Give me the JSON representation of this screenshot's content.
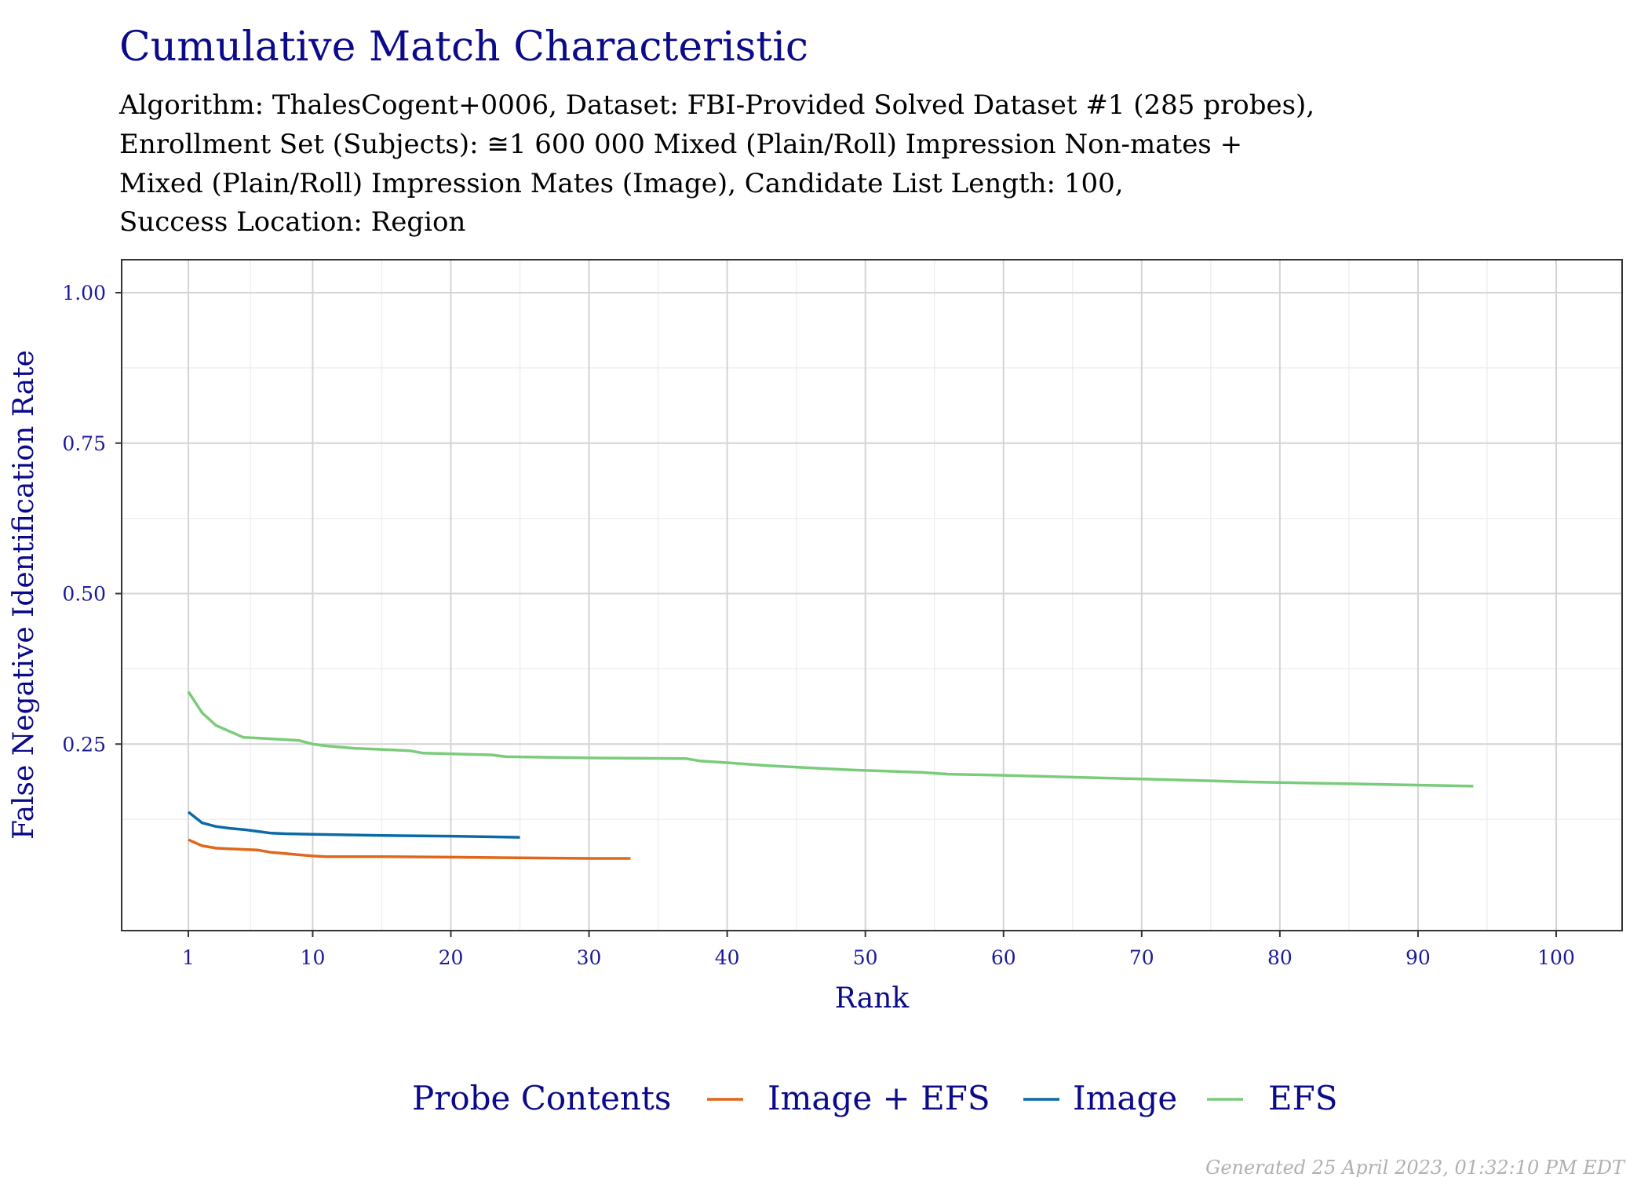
{
  "chart_data": {
    "type": "line",
    "title": "Cumulative Match Characteristic",
    "subtitle_lines": [
      "Algorithm: ThalesCogent+0006, Dataset: FBI-Provided Solved Dataset #1 (285 probes),",
      "Enrollment Set (Subjects): ≅1 600 000 Mixed (Plain/Roll) Impression Non-mates +",
      "Mixed (Plain/Roll) Impression Mates (Image), Candidate List Length: 100,",
      "Success Location: Region"
    ],
    "xlabel": "Rank",
    "ylabel": "False Negative Identification Rate",
    "xlim": [
      1,
      100
    ],
    "ylim": [
      0,
      1
    ],
    "x_ticks": [
      1,
      10,
      20,
      30,
      40,
      50,
      60,
      70,
      80,
      90,
      100
    ],
    "x_tick_labels": [
      "1",
      "10",
      "20",
      "30",
      "40",
      "50",
      "60",
      "70",
      "80",
      "90",
      "100"
    ],
    "y_ticks": [
      0.25,
      0.5,
      0.75,
      1.0
    ],
    "y_tick_labels": [
      "0.25",
      "0.50",
      "0.75",
      "1.00"
    ],
    "grid": true,
    "legend_title": "Probe Contents",
    "legend_position": "bottom",
    "series": [
      {
        "name": "Image + EFS",
        "color": "#e1661a",
        "x": [
          1,
          2,
          3,
          4,
          5,
          6,
          7,
          8,
          9,
          10,
          11,
          12,
          15,
          20,
          25,
          30,
          33
        ],
        "y": [
          0.091,
          0.081,
          0.077,
          0.076,
          0.075,
          0.074,
          0.07,
          0.068,
          0.066,
          0.064,
          0.063,
          0.063,
          0.063,
          0.062,
          0.061,
          0.06,
          0.06
        ]
      },
      {
        "name": "Image",
        "color": "#0a6aa6",
        "x": [
          1,
          2,
          3,
          4,
          5,
          6,
          7,
          8,
          10,
          15,
          20,
          25
        ],
        "y": [
          0.137,
          0.119,
          0.113,
          0.11,
          0.108,
          0.105,
          0.102,
          0.101,
          0.1,
          0.098,
          0.097,
          0.095
        ]
      },
      {
        "name": "EFS",
        "color": "#7acb7a",
        "x": [
          1,
          2,
          3,
          5,
          6,
          9,
          10,
          11,
          13,
          16,
          17,
          18,
          23,
          24,
          30,
          37,
          38,
          40,
          43,
          49,
          54,
          56,
          60,
          70,
          78,
          85,
          94
        ],
        "y": [
          0.337,
          0.302,
          0.281,
          0.261,
          0.26,
          0.256,
          0.25,
          0.247,
          0.243,
          0.24,
          0.239,
          0.235,
          0.232,
          0.229,
          0.227,
          0.226,
          0.222,
          0.219,
          0.214,
          0.207,
          0.203,
          0.2,
          0.198,
          0.192,
          0.187,
          0.184,
          0.18
        ]
      }
    ]
  },
  "footer": "Generated 25 April 2023, 01:32:10 PM EDT"
}
